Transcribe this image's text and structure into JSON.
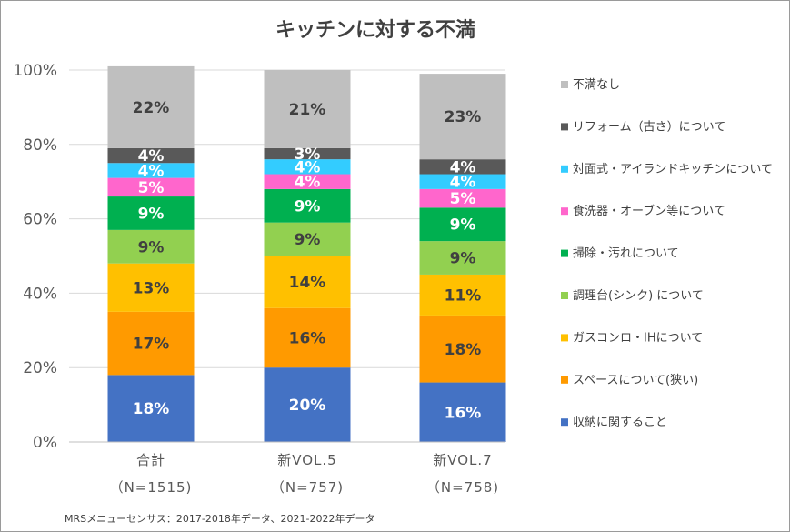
{
  "chart_data": {
    "type": "bar",
    "stacked": true,
    "title": "キッチンに対する不満",
    "categories": [
      "合計",
      "新VOL.5",
      "新VOL.7"
    ],
    "category_sublabels": [
      "（N=1515)",
      "（N=757)",
      "（N=758)"
    ],
    "ylim": [
      0,
      100
    ],
    "yticks": [
      "0%",
      "20%",
      "40%",
      "60%",
      "80%",
      "100%"
    ],
    "legend_position": "right",
    "series": [
      {
        "name": "収納に関すること",
        "color": "#4472C4",
        "values": [
          18,
          20,
          16
        ],
        "label_color": "#ffffff"
      },
      {
        "name": "スペースについて(狭い)",
        "color": "#FF9A00",
        "values": [
          17,
          16,
          18
        ],
        "label_color": "#404040"
      },
      {
        "name": "ガスコンロ・IHについて",
        "color": "#FFC000",
        "values": [
          13,
          14,
          11
        ],
        "label_color": "#404040"
      },
      {
        "name": "調理台(シンク) について",
        "color": "#92D050",
        "values": [
          9,
          9,
          9
        ],
        "label_color": "#404040"
      },
      {
        "name": "掃除・汚れについて",
        "color": "#00B050",
        "values": [
          9,
          9,
          9
        ],
        "label_color": "#ffffff"
      },
      {
        "name": "食洗器・オーブン等について",
        "color": "#FF66CC",
        "values": [
          5,
          4,
          5
        ],
        "label_color": "#ffffff"
      },
      {
        "name": "対面式・アイランドキッチンについて",
        "color": "#33CCFF",
        "values": [
          4,
          4,
          4
        ],
        "label_color": "#ffffff"
      },
      {
        "name": "リフォーム（古さ）について",
        "color": "#595959",
        "values": [
          4,
          3,
          4
        ],
        "label_color": "#ffffff"
      },
      {
        "name": "不満なし",
        "color": "#BFBFBF",
        "values": [
          22,
          21,
          23
        ],
        "label_color": "#404040"
      }
    ],
    "source": "MRSメニューセンサス：2017-2018年データ、2021-2022年データ"
  }
}
